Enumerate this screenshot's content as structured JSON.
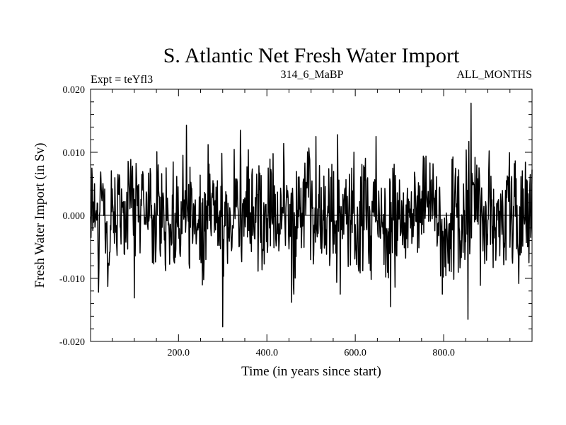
{
  "chart_data": {
    "type": "line",
    "title": "S. Atlantic Net Fresh Water Import",
    "subtitle_left": "Expt = teYfl3",
    "subtitle_center": "314_6_MaBP",
    "subtitle_right": "ALL_MONTHS",
    "xlabel": "Time (in years since start)",
    "ylabel": "Fresh Water Import (in Sv)",
    "xlim": [
      1,
      1000
    ],
    "ylim": [
      -0.02,
      0.02
    ],
    "x_ticks": [
      {
        "value": 200,
        "label": "200.0"
      },
      {
        "value": 400,
        "label": "400.0"
      },
      {
        "value": 600,
        "label": "600.0"
      },
      {
        "value": 800,
        "label": "800.0"
      }
    ],
    "y_ticks": [
      {
        "value": 0.02,
        "label": "0.020"
      },
      {
        "value": 0.01,
        "label": "0.010"
      },
      {
        "value": 0.0,
        "label": "0.000"
      },
      {
        "value": -0.01,
        "label": "-0.010"
      },
      {
        "value": -0.02,
        "label": "-0.020"
      }
    ],
    "grid": false,
    "zero_line": true,
    "series": [
      {
        "name": "Fresh Water Import",
        "color": "#000000",
        "n_points": 1000,
        "noise_std": 0.0045,
        "extremes": [
          {
            "x": 218,
            "y": 0.0143
          },
          {
            "x": 340,
            "y": 0.0135
          },
          {
            "x": 560,
            "y": 0.0128
          },
          {
            "x": 862,
            "y": 0.0178
          },
          {
            "x": 300,
            "y": -0.0177
          },
          {
            "x": 855,
            "y": -0.0165
          },
          {
            "x": 680,
            "y": -0.0145
          },
          {
            "x": 100,
            "y": -0.0131
          },
          {
            "x": 456,
            "y": -0.0138
          }
        ]
      }
    ]
  }
}
